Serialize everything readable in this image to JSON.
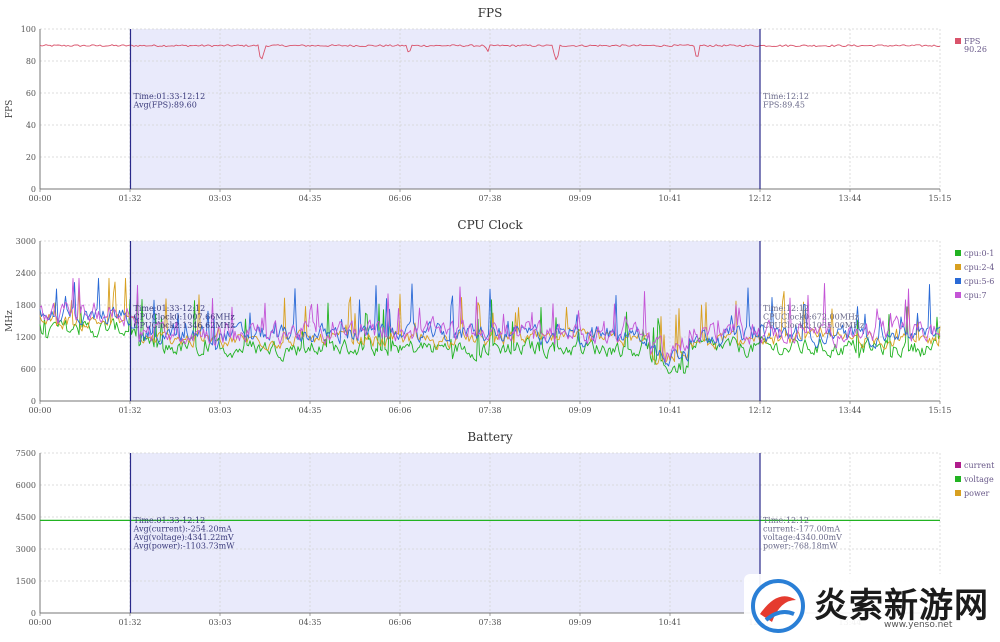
{
  "x_ticks": [
    "00:00",
    "01:32",
    "03:03",
    "04:35",
    "06:06",
    "07:38",
    "09:09",
    "10:41",
    "12:12",
    "13:44",
    "15:15"
  ],
  "x_range_sec": [
    0,
    915
  ],
  "selection": {
    "start_sec": 92,
    "end_sec": 732,
    "color": "#e9eafb"
  },
  "chart_data": [
    {
      "type": "line",
      "title": "FPS",
      "ylabel": "FPS",
      "ylim": [
        0,
        100
      ],
      "y_ticks": [
        0,
        20,
        40,
        60,
        80,
        100
      ],
      "grid": true,
      "legend_position": "right",
      "series": [
        {
          "name": "FPS",
          "legend_value": "90.26",
          "color": "#d9536b",
          "base": 89.6,
          "noise": 1.2,
          "dips": [
            [
              225,
              80
            ],
            [
              375,
              84
            ],
            [
              455,
              85
            ],
            [
              525,
              80
            ],
            [
              668,
              81
            ]
          ]
        }
      ],
      "annotation_selection": [
        "Time:01:33-12:12",
        "Avg(FPS):89.60"
      ],
      "annotation_cursor": [
        "Time:12:12",
        "FPS:89.45"
      ]
    },
    {
      "type": "line",
      "title": "CPU Clock",
      "ylabel": "MHz",
      "ylim": [
        0,
        3000
      ],
      "y_ticks": [
        0,
        600,
        1200,
        1800,
        2400,
        3000
      ],
      "grid": true,
      "legend_position": "right",
      "series": [
        {
          "name": "cpu:0-1",
          "color": "#22b322",
          "base": 1000,
          "noise": 260
        },
        {
          "name": "cpu:2-4",
          "color": "#d8a020",
          "base": 1150,
          "noise": 220
        },
        {
          "name": "cpu:5-6",
          "color": "#2a6ad6",
          "base": 1250,
          "noise": 280
        },
        {
          "name": "cpu:7",
          "color": "#c455d6",
          "base": 1300,
          "noise": 320
        }
      ],
      "annotation_selection": [
        "Time:01:33-12:12",
        "CPUClock0:1007.66MHz",
        "CPUClock2:1346.62MHz"
      ],
      "annotation_cursor": [
        "Time:12:12",
        "CPUClock0:672.00MHz",
        "CPUClock2:1035.00MHz"
      ]
    },
    {
      "type": "line",
      "title": "Battery",
      "ylabel": "",
      "ylim": [
        0,
        7500
      ],
      "y_ticks": [
        0,
        1500,
        3000,
        4500,
        6000,
        7500
      ],
      "grid": true,
      "legend_position": "right",
      "series": [
        {
          "name": "current",
          "color": "#b01c8c",
          "base": null
        },
        {
          "name": "voltage",
          "color": "#22b322",
          "base": 4341
        },
        {
          "name": "power",
          "color": "#d8a020",
          "base": null
        }
      ],
      "annotation_selection": [
        "Time:01:33-12:12",
        "Avg(current):-254.20mA",
        "Avg(voltage):4341.22mV",
        "Avg(power):-1103.73mW"
      ],
      "annotation_cursor": [
        "Time:12:12",
        "current:-177.00mA",
        "voltage:4340.00mV",
        "power:-768.18mW"
      ]
    }
  ],
  "watermark": {
    "text": "炎索新游网",
    "url": "www.yenso.net"
  }
}
